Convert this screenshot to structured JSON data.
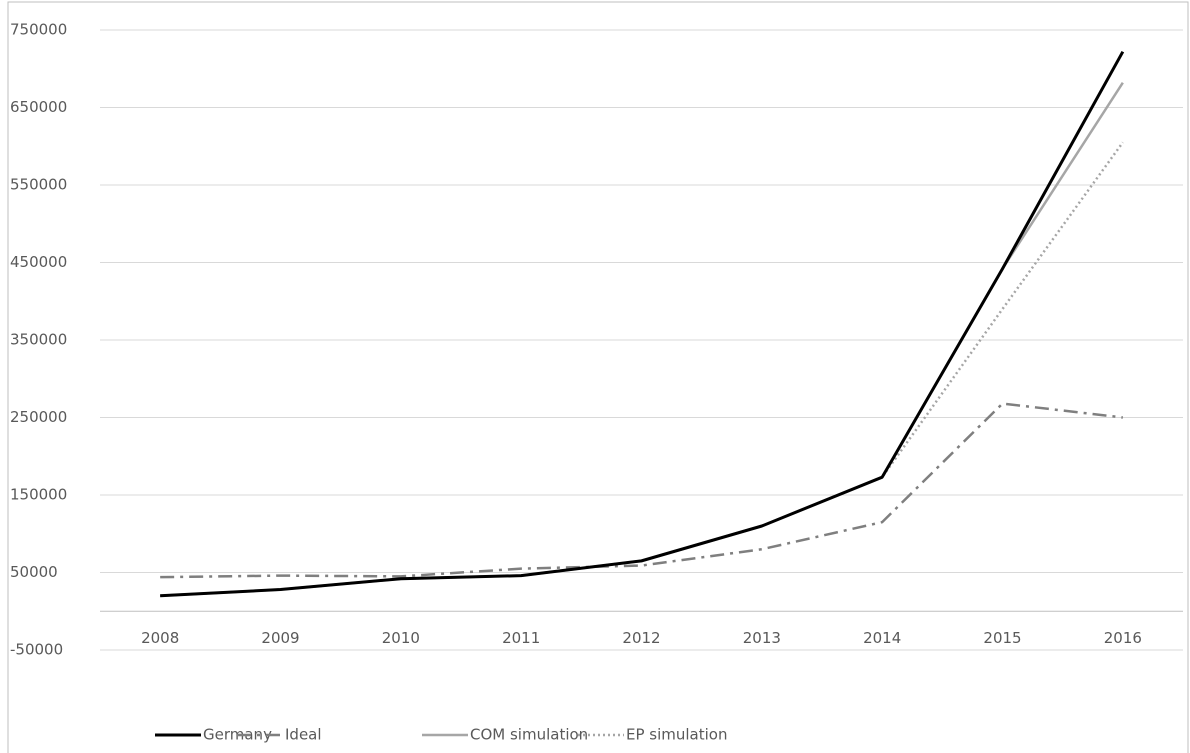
{
  "chart_data": {
    "type": "line",
    "categories": [
      "2008",
      "2009",
      "2010",
      "2011",
      "2012",
      "2013",
      "2014",
      "2015",
      "2016"
    ],
    "series": [
      {
        "name": "Germany",
        "color": "#000000",
        "dash": "solid",
        "values": [
          20000,
          28000,
          42000,
          46000,
          65000,
          110000,
          173000,
          442000,
          722000
        ]
      },
      {
        "name": "Ideal",
        "color": "#7f7f7f",
        "dash": "dashdot",
        "values": [
          44000,
          46000,
          45000,
          55000,
          59000,
          80000,
          115000,
          268000,
          250000
        ]
      },
      {
        "name": "COM simulation",
        "color": "#a6a6a6",
        "dash": "solid",
        "values": [
          20000,
          28000,
          42000,
          46000,
          65000,
          110000,
          173000,
          442000,
          682000
        ]
      },
      {
        "name": "EP simulation",
        "color": "#a6a6a6",
        "dash": "dotted",
        "values": [
          20000,
          28000,
          42000,
          46000,
          65000,
          110000,
          173000,
          390000,
          605000
        ]
      }
    ],
    "ylim": [
      -50000,
      750000
    ],
    "yticks": [
      -50000,
      50000,
      150000,
      250000,
      350000,
      450000,
      550000,
      650000,
      750000
    ],
    "grid": true,
    "legend": "bottom"
  }
}
